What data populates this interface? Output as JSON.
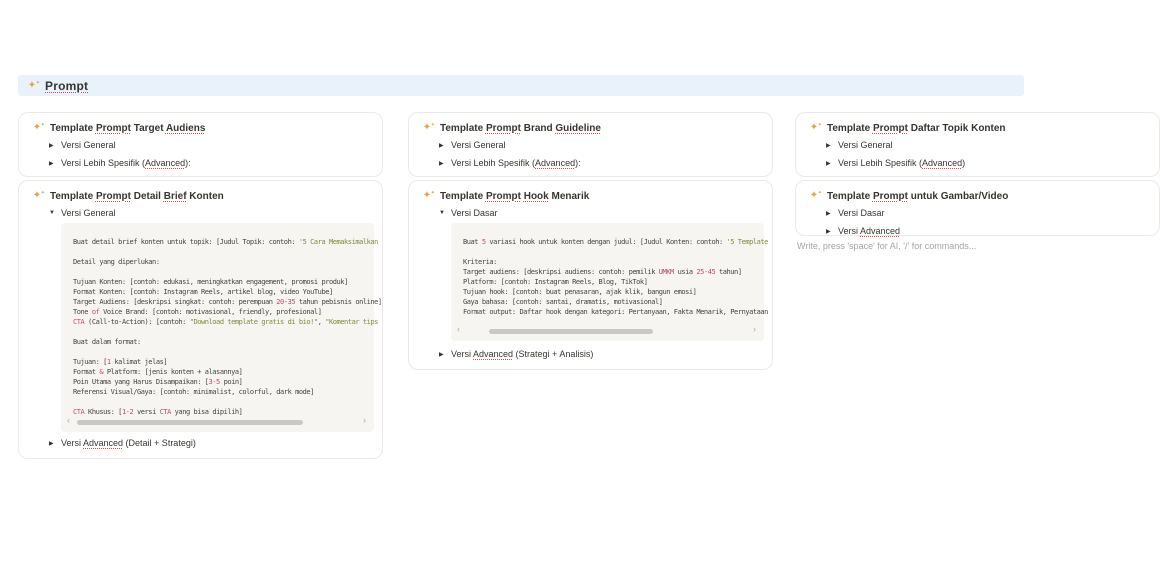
{
  "icons": {
    "sparkle": "✦",
    "sparkle_small": "✦",
    "toggle_collapsed": "▶",
    "toggle_expanded": "▼",
    "scroll_left": "‹",
    "scroll_right": "›"
  },
  "colors": {
    "header_bg": "#e9f2fa",
    "sparkle": "#e9a33b",
    "code_green": "#7f8c35",
    "code_red": "#c04a75",
    "spellcheck": "#d44c47"
  },
  "header": {
    "title_segments": [
      {
        "t": "Prompt",
        "sp": 1
      }
    ]
  },
  "editor": {
    "placeholder": "Write, press 'space' for AI, '/' for commands..."
  },
  "columns": {
    "col1": {
      "card1": {
        "title": [
          {
            "t": "Template "
          },
          {
            "t": "Prompt",
            "sp": 1
          },
          {
            "t": " Target "
          },
          {
            "t": "Audiens",
            "sp": 1
          }
        ],
        "toggles": [
          [
            {
              "t": "Versi General"
            }
          ],
          [
            {
              "t": "Versi Lebih Spesifik ("
            },
            {
              "t": "Advanced",
              "sp": 1
            },
            {
              "t": "):"
            }
          ]
        ]
      },
      "card2": {
        "title": [
          {
            "t": "Template "
          },
          {
            "t": "Prompt",
            "sp": 1
          },
          {
            "t": " Detail "
          },
          {
            "t": "Brief",
            "sp": 1
          },
          {
            "t": " Konten"
          }
        ],
        "toggle_general": [
          {
            "t": "Versi General"
          }
        ],
        "toggle_advanced": [
          {
            "t": "Versi "
          },
          {
            "t": "Advanced",
            "sp": 1
          },
          {
            "t": " (Detail + Strategi)"
          }
        ],
        "code_lines": [
          [
            {
              "t": "Buat detail brief konten untuk topik: [Judul Topik: contoh: "
            },
            {
              "t": "'5 Cara Memaksimalkan",
              "c": "g"
            }
          ],
          [],
          [
            {
              "t": "Detail yang diperlukan:"
            }
          ],
          [],
          [
            {
              "t": "Tujuan Konten: [contoh: edukasi, meningkatkan engagement, promosi produk]"
            }
          ],
          [
            {
              "t": "Format Konten: [contoh: Instagram Reels, artikel blog, video YouTube]"
            }
          ],
          [
            {
              "t": "Target Audiens: [deskripsi singkat: contoh: perempuan "
            },
            {
              "t": "20-35",
              "c": "r"
            },
            {
              "t": " tahun pebisnis online]"
            }
          ],
          [
            {
              "t": "Tone "
            },
            {
              "t": "of",
              "c": "r"
            },
            {
              "t": " Voice Brand: [contoh: motivasional, friendly, profesional]"
            }
          ],
          [
            {
              "t": "CTA",
              "c": "r"
            },
            {
              "t": " (Call-to-Action): [contoh: "
            },
            {
              "t": "\"Download template gratis di bio!\"",
              "c": "g"
            },
            {
              "t": ", "
            },
            {
              "t": "\"Komentar tips",
              "c": "g"
            }
          ],
          [],
          [
            {
              "t": "Buat dalam format:"
            }
          ],
          [],
          [
            {
              "t": "Tujuan: ["
            },
            {
              "t": "1",
              "c": "r"
            },
            {
              "t": " kalimat jelas]"
            }
          ],
          [
            {
              "t": "Format "
            },
            {
              "t": "&",
              "c": "r"
            },
            {
              "t": " Platform: [jenis konten + alasannya]"
            }
          ],
          [
            {
              "t": "Poin Utama yang Harus Disampaikan: ["
            },
            {
              "t": "3-5",
              "c": "r"
            },
            {
              "t": " poin]"
            }
          ],
          [
            {
              "t": "Referensi Visual/Gaya: [contoh: minimalist, colorful, dark mode]"
            }
          ],
          [],
          [
            {
              "t": "CTA",
              "c": "r"
            },
            {
              "t": " Khusus: ["
            },
            {
              "t": "1-2",
              "c": "r"
            },
            {
              "t": " versi "
            },
            {
              "t": "CTA",
              "c": "r"
            },
            {
              "t": " yang bisa dipilih]"
            }
          ]
        ]
      }
    },
    "col2": {
      "card1": {
        "title": [
          {
            "t": "Template "
          },
          {
            "t": "Prompt",
            "sp": 1
          },
          {
            "t": " Brand "
          },
          {
            "t": "Guideline",
            "sp": 1
          }
        ],
        "toggles": [
          [
            {
              "t": "Versi General"
            }
          ],
          [
            {
              "t": "Versi Lebih Spesifik ("
            },
            {
              "t": "Advanced",
              "sp": 1
            },
            {
              "t": "):"
            }
          ]
        ]
      },
      "card2": {
        "title": [
          {
            "t": "Template "
          },
          {
            "t": "Prompt",
            "sp": 1
          },
          {
            "t": " "
          },
          {
            "t": "Hook",
            "sp": 1
          },
          {
            "t": " Menarik"
          }
        ],
        "toggle_dasar": [
          {
            "t": "Versi Dasar"
          }
        ],
        "toggle_advanced": [
          {
            "t": "Versi "
          },
          {
            "t": "Advanced",
            "sp": 1
          },
          {
            "t": " (Strategi + Analisis)"
          }
        ],
        "code_lines": [
          [
            {
              "t": "Buat "
            },
            {
              "t": "5",
              "c": "r"
            },
            {
              "t": " variasi hook untuk konten dengan judul: [Judul Konten: contoh: "
            },
            {
              "t": "'5 Template",
              "c": "g"
            }
          ],
          [],
          [
            {
              "t": "Kriteria:"
            }
          ],
          [
            {
              "t": "Target audiens: [deskripsi audiens: contoh: pemilik "
            },
            {
              "t": "UMKM",
              "c": "r"
            },
            {
              "t": " usia "
            },
            {
              "t": "25-45",
              "c": "r"
            },
            {
              "t": " tahun]"
            }
          ],
          [
            {
              "t": "Platform: [contoh: Instagram Reels, Blog, TikTok]"
            }
          ],
          [
            {
              "t": "Tujuan hook: [contoh: buat penasaran, ajak klik, bangun emosi]"
            }
          ],
          [
            {
              "t": "Gaya bahasa: [contoh: santai, dramatis, motivasional]"
            }
          ],
          [
            {
              "t": "Format output: Daftar hook dengan kategori: Pertanyaan, Fakta Menarik, Pernyataan"
            }
          ]
        ]
      }
    },
    "col3": {
      "card1": {
        "title": [
          {
            "t": "Template "
          },
          {
            "t": "Prompt",
            "sp": 1
          },
          {
            "t": " Daftar Topik Konten"
          }
        ],
        "toggles": [
          [
            {
              "t": "Versi General"
            }
          ],
          [
            {
              "t": "Versi Lebih Spesifik ("
            },
            {
              "t": "Advanced",
              "sp": 1
            },
            {
              "t": ")"
            }
          ]
        ]
      },
      "card2": {
        "title": [
          {
            "t": "Template "
          },
          {
            "t": "Prompt",
            "sp": 1
          },
          {
            "t": " untuk Gambar/Video"
          }
        ],
        "toggles": [
          [
            {
              "t": "Versi Dasar"
            }
          ],
          [
            {
              "t": "Versi "
            },
            {
              "t": "Advanced",
              "sp": 1
            }
          ]
        ]
      }
    }
  }
}
